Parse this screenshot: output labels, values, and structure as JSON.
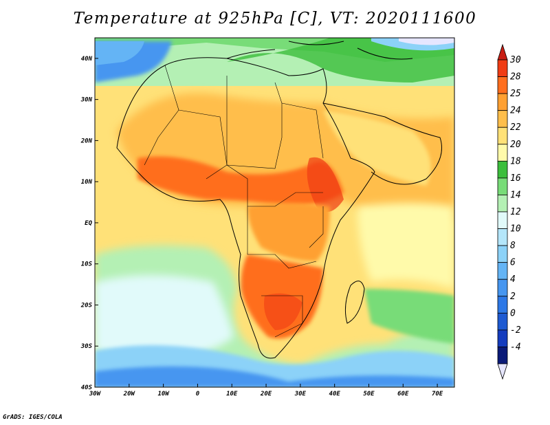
{
  "title": "Temperature at 925hPa [C], VT: 2020111600",
  "credit": "GrADS: IGES/COLA",
  "map": {
    "lon_range": [
      -30,
      75
    ],
    "lat_range": [
      -40,
      45
    ],
    "lat_ticks": [
      {
        "value": 40,
        "label": "40N"
      },
      {
        "value": 30,
        "label": "30N"
      },
      {
        "value": 20,
        "label": "20N"
      },
      {
        "value": 10,
        "label": "10N"
      },
      {
        "value": 0,
        "label": "EQ"
      },
      {
        "value": -10,
        "label": "10S"
      },
      {
        "value": -20,
        "label": "20S"
      },
      {
        "value": -30,
        "label": "30S"
      },
      {
        "value": -40,
        "label": "40S"
      }
    ],
    "lon_ticks": [
      {
        "value": -30,
        "label": "30W"
      },
      {
        "value": -20,
        "label": "20W"
      },
      {
        "value": -10,
        "label": "10W"
      },
      {
        "value": 0,
        "label": "0"
      },
      {
        "value": 10,
        "label": "10E"
      },
      {
        "value": 20,
        "label": "20E"
      },
      {
        "value": 30,
        "label": "30E"
      },
      {
        "value": 40,
        "label": "40E"
      },
      {
        "value": 50,
        "label": "50E"
      },
      {
        "value": 60,
        "label": "60E"
      },
      {
        "value": 70,
        "label": "70E"
      }
    ]
  },
  "colorbar": {
    "levels": [
      {
        "label": "-4",
        "color": "#0a1a78"
      },
      {
        "label": "-2",
        "color": "#143cbe"
      },
      {
        "label": "0",
        "color": "#1e5ad2"
      },
      {
        "label": "2",
        "color": "#2d78e6"
      },
      {
        "label": "4",
        "color": "#4696f0"
      },
      {
        "label": "6",
        "color": "#64b4f5"
      },
      {
        "label": "8",
        "color": "#8cd2f8"
      },
      {
        "label": "10",
        "color": "#b4e6fa"
      },
      {
        "label": "12",
        "color": "#e1fafa"
      },
      {
        "label": "14",
        "color": "#b4f0b4"
      },
      {
        "label": "16",
        "color": "#78dc78"
      },
      {
        "label": "18",
        "color": "#3cbe3c"
      },
      {
        "label": "20",
        "color": "#fffaaa"
      },
      {
        "label": "22",
        "color": "#ffe178"
      },
      {
        "label": "24",
        "color": "#ffbe4b"
      },
      {
        "label": "25",
        "color": "#ffa032"
      },
      {
        "label": "28",
        "color": "#ff6e1e"
      },
      {
        "label": "30",
        "color": "#f03c14"
      }
    ],
    "low_end_color": "#e6e6ff",
    "high_end_color": "#c81e14"
  }
}
